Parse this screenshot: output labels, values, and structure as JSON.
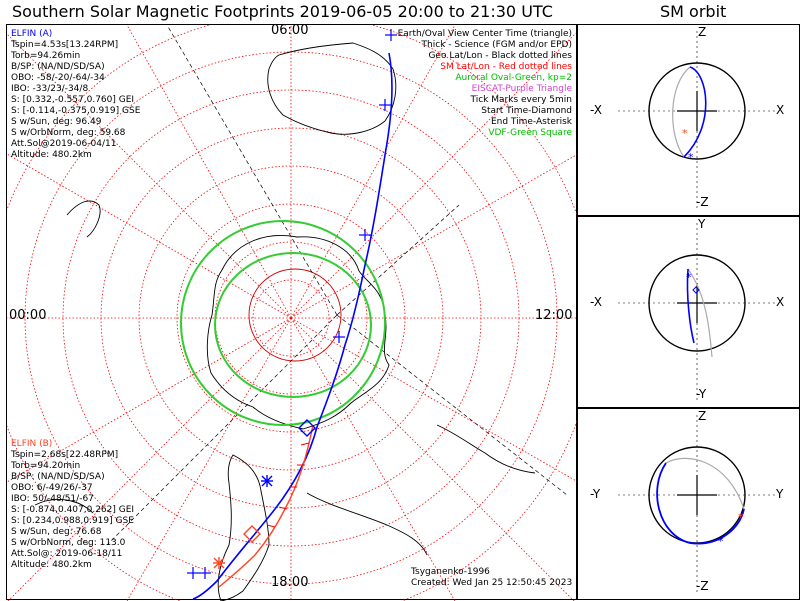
{
  "title": "Southern Solar Magnetic Footprints 2019-06-05 20:00 to 21:30 UTC",
  "orbit_title": "SM orbit",
  "mlt_labels": {
    "top": "06:00",
    "left": "00:00",
    "right": "12:00",
    "bottom": "18:00"
  },
  "elfin_a": {
    "name": "ELFIN (A)",
    "lines": [
      "Tspin=4.53s[13.24RPM]",
      "Torb=94.26min",
      "B/SP: (NA/ND/SD/SA)",
      "OBO: -58/-20/-64/-34",
      "IBO: -33/23/-34/8",
      "S: [0.332,-0.557,0.760] GEI",
      "S: [-0.114,-0.375,0.919] GSE",
      "S w/Sun, deg: 96.49",
      "S w/OrbNorm, deg: 59.68",
      "Att.Sol@2019-06-04/11",
      "Altitude: 480.2km"
    ]
  },
  "elfin_b": {
    "name": "ELFIN (B)",
    "lines": [
      "Tspin=2.68s[22.48RPM]",
      "Torb=94.20min",
      "B/SP: (NA/ND/SD/SA)",
      "OBO: 6/-49/26/-37",
      "IBO: 50/-48/51/-67",
      "S: [-0.874,0.407,0.262] GEI",
      "S: [0.234,0.988,0.919] GSE",
      "S w/Sun, deg: 76.68",
      "S w/OrbNorm, deg: 113.0",
      "Att.Sol@: 2019-06-18/11",
      "Altitude: 480.2km"
    ]
  },
  "legend": {
    "lines": [
      {
        "text": "Earth/Oval View Center Time (triangle)",
        "color": "#000000"
      },
      {
        "text": "Thick - Science (FGM and/or EPD)",
        "color": "#000000"
      },
      {
        "text": "Geo Lat/Lon - Black dotted lines",
        "color": "#000000"
      },
      {
        "text": "SM Lat/Lon - Red dotted lines",
        "color": "#ff0000"
      },
      {
        "text": "Auroral Oval-Green, kp=2",
        "color": "#00bb00"
      },
      {
        "text": "EISCAT-Purple Triangle",
        "color": "#cc44cc"
      },
      {
        "text": "Tick Marks every 5min",
        "color": "#000000"
      },
      {
        "text": "Start Time-Diamond",
        "color": "#000000"
      },
      {
        "text": "End Time-Asterisk",
        "color": "#000000"
      },
      {
        "text": "VDF-Green Square",
        "color": "#00bb00"
      }
    ]
  },
  "credit": "Tsyganenko-1996",
  "created": "Created: Wed Jan 25 12:50:45 2023",
  "orbit_panels": {
    "xz": {
      "top": "Z",
      "bottom": "-Z",
      "left": "-X",
      "right": "X"
    },
    "xy": {
      "top": "Y",
      "bottom": "-Y",
      "left": "-X",
      "right": "X"
    },
    "yz": {
      "top": "Z",
      "bottom": "-Z",
      "left": "-Y",
      "right": "Y"
    }
  },
  "colors": {
    "elfin_a": "#0000ff",
    "elfin_b": "#ff4422",
    "sm_grid": "#ff0000",
    "oval": "#00bb00",
    "geo": "#000000"
  }
}
